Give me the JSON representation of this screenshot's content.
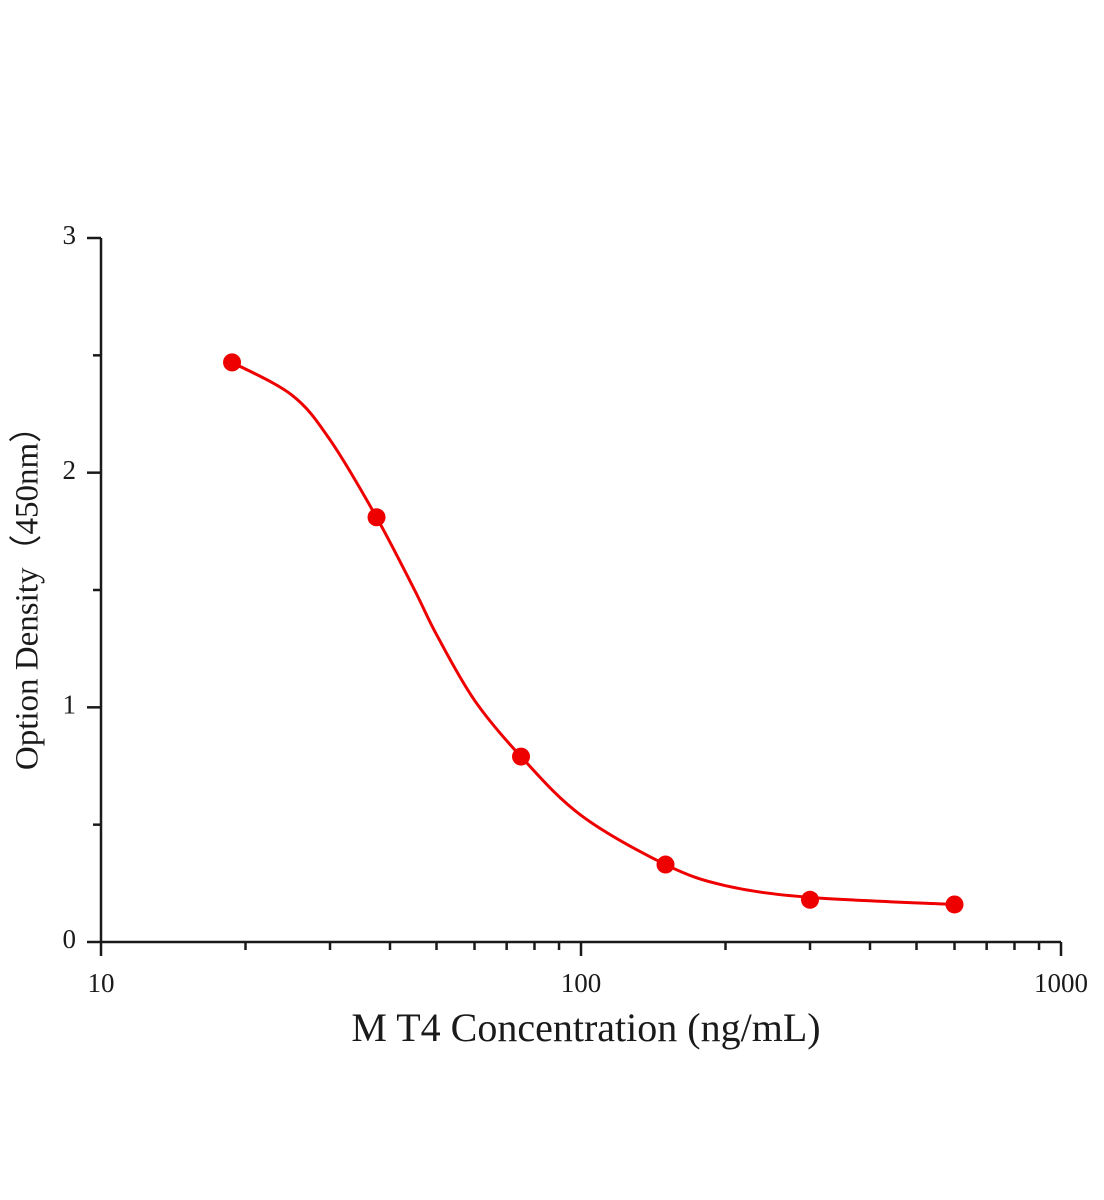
{
  "chart_data": {
    "type": "scatter",
    "x_label": "M T4 Concentration (ng/mL)",
    "y_label": "Option Density（450nm）",
    "xscale": "log",
    "xlim": [
      10,
      1000
    ],
    "xticks": [
      10,
      100,
      1000
    ],
    "xminorticks": [
      20,
      30,
      40,
      50,
      60,
      70,
      80,
      90,
      200,
      300,
      400,
      500,
      600,
      700,
      800,
      900
    ],
    "ylim": [
      0,
      3
    ],
    "yticks": [
      0,
      1,
      2,
      3
    ],
    "yminorticks": [
      0.5,
      1.5,
      2.5
    ],
    "series": [
      {
        "mode": "markers",
        "color": "#ee0000",
        "x": [
          18.75,
          37.5,
          75,
          150,
          300,
          600
        ],
        "values": [
          2.47,
          1.81,
          0.79,
          0.33,
          0.18,
          0.16
        ]
      },
      {
        "mode": "line",
        "color": "#ee0000",
        "x": [
          18.75,
          25,
          30,
          37.5,
          45,
          50,
          60,
          75,
          100,
          150,
          200,
          300,
          600
        ],
        "values": [
          2.47,
          2.33,
          2.14,
          1.81,
          1.5,
          1.31,
          1.03,
          0.79,
          0.54,
          0.33,
          0.24,
          0.19,
          0.16
        ]
      }
    ]
  }
}
